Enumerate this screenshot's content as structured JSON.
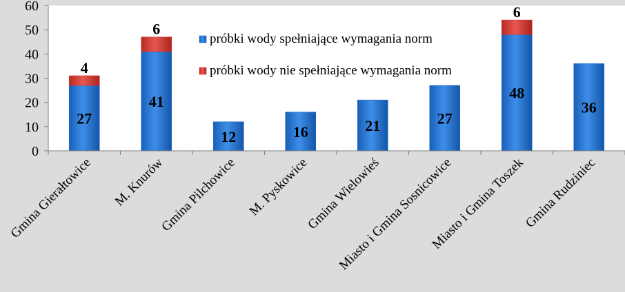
{
  "chart_data": {
    "type": "bar",
    "stacked": true,
    "categories": [
      "Gmina Gierałtowice",
      "M. Knurów",
      "Gmina Pilchowice",
      "M. Pyskowice",
      "Gmina Wielowieś",
      "Miasto i Gmina Sosnicowice",
      "Miasto i Gmina Toszek",
      "Gmina Rudziniec"
    ],
    "series": [
      {
        "name": "próbki wody spełniające wymagania norm",
        "values": [
          27,
          41,
          12,
          16,
          21,
          27,
          48,
          36
        ],
        "color": "#1f6fd1",
        "label_color": "#000000"
      },
      {
        "name": "próbki wody nie spełniające wymagania norm",
        "values": [
          4,
          6,
          0,
          0,
          0,
          0,
          6,
          0
        ],
        "color": "#d9352f",
        "label_color": "#000000"
      }
    ],
    "ylim": [
      0,
      60
    ],
    "yticks": [
      0,
      10,
      20,
      30,
      40,
      50,
      60
    ],
    "title": "",
    "xlabel": "",
    "ylabel": "",
    "legend_position": "top-center-inside",
    "grid": false
  }
}
